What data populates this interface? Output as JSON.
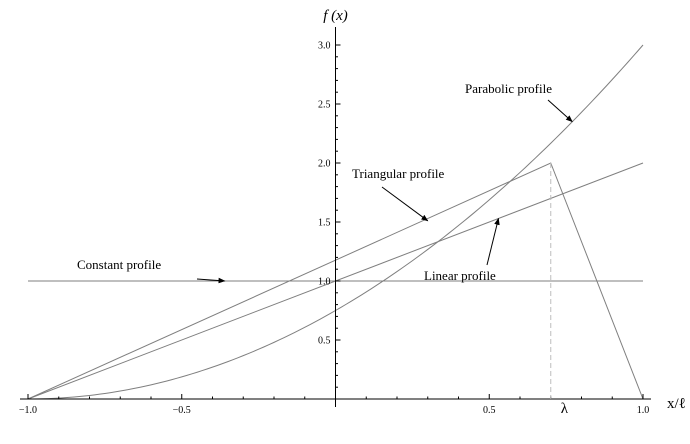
{
  "chart_data": {
    "type": "line",
    "title": "",
    "xlabel": "x/ℓ",
    "ylabel": "f (x)",
    "xlim": [
      -1.0,
      1.0
    ],
    "ylim": [
      0,
      3.0
    ],
    "x_ticks": [
      -1.0,
      -0.5,
      0.5,
      1.0
    ],
    "x_tick_labels": [
      "−1.0",
      "−0.5",
      "0.5",
      "1.0"
    ],
    "y_ticks": [
      0.5,
      1.0,
      1.5,
      2.0,
      2.5,
      3.0
    ],
    "y_tick_labels": [
      "0.5",
      "1.0",
      "1.5",
      "2.0",
      "2.5",
      "3.0"
    ],
    "lambda_label": "λ",
    "lambda_x": 0.7,
    "grid": false,
    "line_color": "#7f7f7f",
    "series": [
      {
        "key": "constant",
        "points": [
          [
            -1.0,
            1.0
          ],
          [
            1.0,
            1.0
          ]
        ]
      },
      {
        "key": "linear",
        "points": [
          [
            -1.0,
            0.0
          ],
          [
            1.0,
            2.0
          ]
        ]
      },
      {
        "key": "triangular",
        "points": [
          [
            -1.0,
            0.0
          ],
          [
            0.7,
            2.0
          ],
          [
            1.0,
            0.0
          ]
        ]
      },
      {
        "key": "parabolic",
        "formula": "0.75*(1+x)^2",
        "points": [
          [
            -1.0,
            0.0
          ],
          [
            -0.5,
            0.1875
          ],
          [
            0.0,
            0.75
          ],
          [
            0.5,
            1.6875
          ],
          [
            0.7,
            2.1675
          ],
          [
            1.0,
            3.0
          ]
        ]
      }
    ],
    "annotations": [
      {
        "key": "parabolic",
        "text": "Parabolic profile",
        "target": [
          0.77,
          2.35
        ]
      },
      {
        "key": "triangular",
        "text": "Triangular profile",
        "target": [
          0.3,
          1.51
        ]
      },
      {
        "key": "linear",
        "text": "Linear profile",
        "target": [
          0.53,
          1.53
        ]
      },
      {
        "key": "constant",
        "text": "Constant profile",
        "target": [
          -0.36,
          1.0
        ]
      }
    ]
  }
}
